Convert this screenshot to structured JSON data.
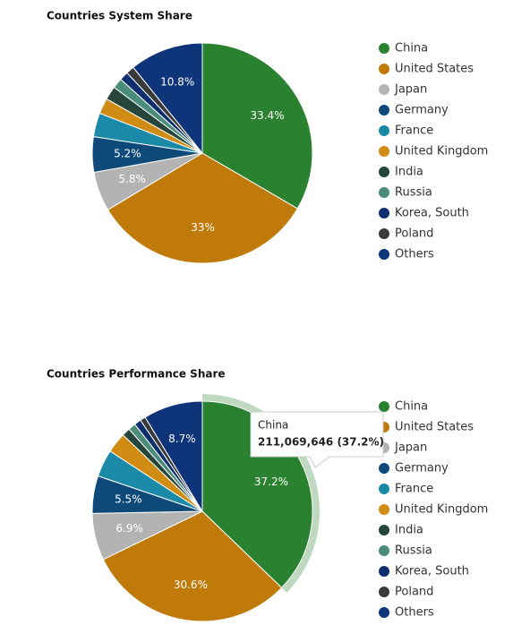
{
  "chart_data": [
    {
      "type": "pie",
      "title": "Countries System Share",
      "categories": [
        "China",
        "United States",
        "Japan",
        "Germany",
        "France",
        "United Kingdom",
        "India",
        "Russia",
        "Korea, South",
        "Poland",
        "Others"
      ],
      "colors": [
        "#2a8230",
        "#bf7a0a",
        "#b3b3b3",
        "#0d4a7a",
        "#1a8aa8",
        "#d08b12",
        "#26463b",
        "#4c8c7a",
        "#0d2f6e",
        "#3a3a3a",
        "#0e3479"
      ],
      "values": [
        33.4,
        33,
        5.8,
        5.2,
        3.5,
        2.3,
        2,
        1.5,
        1.3,
        1.2,
        10.8
      ],
      "value_labels": [
        "33.4%",
        "33%",
        "5.8%",
        "5.2%",
        null,
        null,
        null,
        null,
        null,
        null,
        "10.8%"
      ]
    },
    {
      "type": "pie",
      "title": "Countries Performance Share",
      "categories": [
        "China",
        "United States",
        "Japan",
        "Germany",
        "France",
        "United Kingdom",
        "India",
        "Russia",
        "Korea, South",
        "Poland",
        "Others"
      ],
      "colors": [
        "#2a8230",
        "#bf7a0a",
        "#b3b3b3",
        "#0d4a7a",
        "#1a8aa8",
        "#d08b12",
        "#26463b",
        "#4c8c7a",
        "#0d2f6e",
        "#3a3a3a",
        "#0e3479"
      ],
      "values": [
        37.2,
        30.6,
        6.9,
        5.5,
        4,
        3,
        1.2,
        1.1,
        1,
        0.8,
        8.7
      ],
      "value_labels": [
        "37.2%",
        "30.6%",
        "6.9%",
        "5.5%",
        null,
        null,
        null,
        null,
        null,
        null,
        "8.7%"
      ],
      "tooltip": {
        "title": "China",
        "text": "211,069,646 (37.2%)"
      }
    }
  ]
}
